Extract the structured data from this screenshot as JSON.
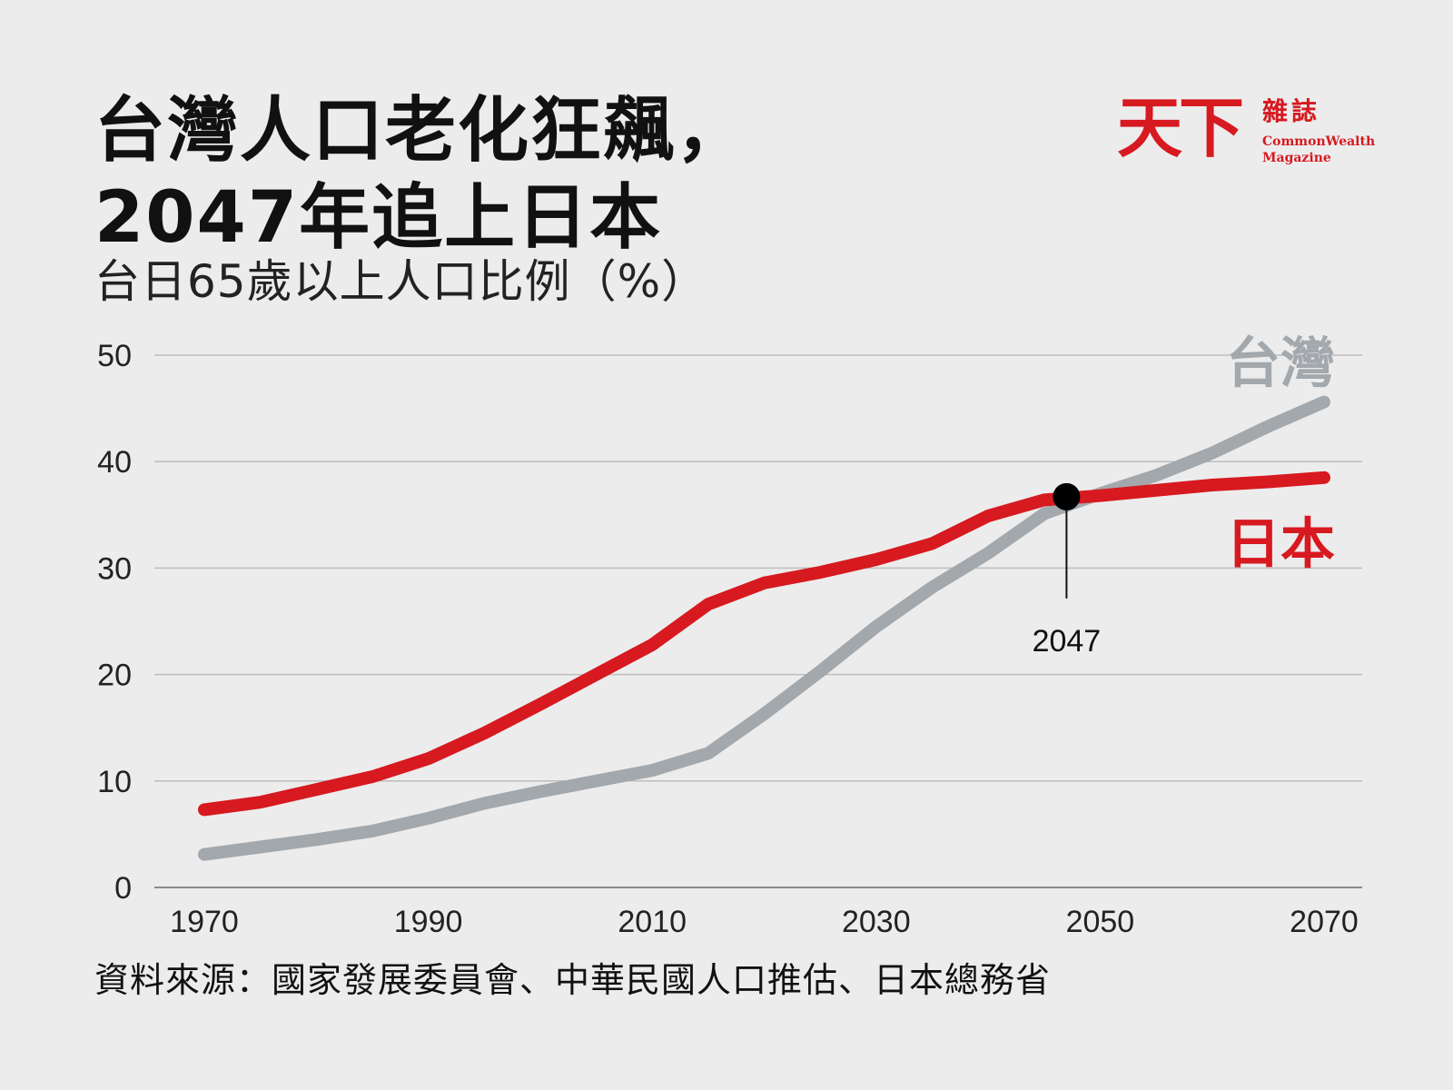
{
  "title_line1": "台灣人口老化狂飆，",
  "title_line2": "2047年追上日本",
  "subtitle": "台日65歲以上人口比例（%）",
  "logo": {
    "mark": "天下",
    "name_cn": "雜誌",
    "name_en_line1": "CommonWealth",
    "name_en_line2": "Magazine"
  },
  "source": "資料來源：國家發展委員會、中華民國人口推估、日本總務省",
  "colors": {
    "taiwan": "#a3a8ad",
    "japan": "#d71920",
    "grid": "#bdbdbd",
    "background": "#ececec"
  },
  "chart_data": {
    "type": "line",
    "title": "台日65歲以上人口比例（%）",
    "xlim": [
      1970,
      2070
    ],
    "ylim": [
      0,
      50
    ],
    "x_ticks": [
      1970,
      1990,
      2010,
      2030,
      2050,
      2070
    ],
    "y_ticks": [
      0,
      10,
      20,
      30,
      40,
      50
    ],
    "grid": true,
    "series": [
      {
        "name": "台灣",
        "x": [
          1970,
          1975,
          1980,
          1985,
          1990,
          1995,
          2000,
          2005,
          2010,
          2015,
          2020,
          2025,
          2030,
          2035,
          2040,
          2045,
          2050,
          2055,
          2060,
          2065,
          2070
        ],
        "values": [
          3.1,
          3.8,
          4.5,
          5.3,
          6.5,
          7.9,
          9.0,
          10.0,
          11.0,
          12.6,
          16.3,
          20.3,
          24.5,
          28.2,
          31.4,
          35.1,
          37.0,
          38.7,
          40.8,
          43.3,
          45.6
        ]
      },
      {
        "name": "日本",
        "x": [
          1970,
          1975,
          1980,
          1985,
          1990,
          1995,
          2000,
          2005,
          2010,
          2015,
          2020,
          2025,
          2030,
          2035,
          2040,
          2045,
          2050,
          2055,
          2060,
          2065,
          2070
        ],
        "values": [
          7.3,
          8.0,
          9.2,
          10.4,
          12.1,
          14.5,
          17.2,
          20.0,
          22.8,
          26.6,
          28.6,
          29.6,
          30.8,
          32.3,
          34.9,
          36.4,
          36.8,
          37.3,
          37.8,
          38.1,
          38.5
        ]
      }
    ],
    "annotations": [
      {
        "label": "2047",
        "x": 2047,
        "y": 36.7
      }
    ],
    "series_labels": [
      "台灣",
      "日本"
    ]
  }
}
